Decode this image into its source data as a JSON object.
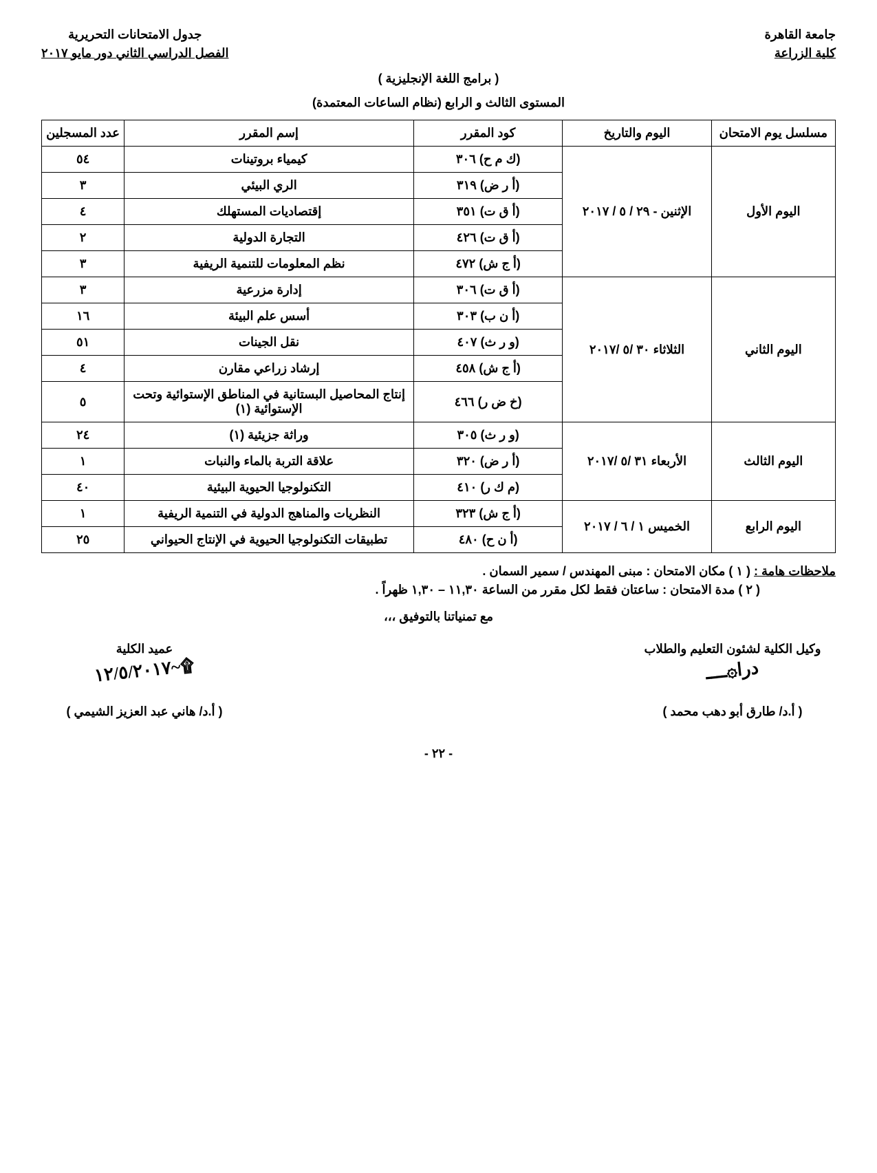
{
  "header": {
    "university": "جامعة القاهرة",
    "faculty": "كلية الزراعة",
    "schedule_title": "جدول الامتحانات التحريرية",
    "semester": "الفصل الدراسي الثاني دور مايو ٢٠١٧"
  },
  "program_line": "( برامج اللغة الإنجليزية )",
  "level_line": "المستوى الثالث و الرابع (نظام الساعات المعتمدة)",
  "columns": {
    "serial": "مسلسل يوم الامتحان",
    "date": "اليوم والتاريخ",
    "code": "كود المقرر",
    "name": "إسم المقرر",
    "count": "عدد المسجلين"
  },
  "days": [
    {
      "serial": "اليوم الأول",
      "date": "الإثنين - ٢٩ / ٥ / ٢٠١٧",
      "courses": [
        {
          "code": "(ك م ح) ٣٠٦",
          "name": "كيمياء بروتينات",
          "count": "٥٤"
        },
        {
          "code": "(أ ر ض) ٣١٩",
          "name": "الري البيئي",
          "count": "٣"
        },
        {
          "code": "(أ ق ت) ٣٥١",
          "name": "إقتصاديات المستهلك",
          "count": "٤"
        },
        {
          "code": "(أ ق ت) ٤٢٦",
          "name": "التجارة الدولية",
          "count": "٢"
        },
        {
          "code": "(أ ج ش) ٤٧٢",
          "name": "نظم المعلومات للتنمية الريفية",
          "count": "٣"
        }
      ]
    },
    {
      "serial": "اليوم الثاني",
      "date": "الثلاثاء ٣٠ /٥ /٢٠١٧",
      "courses": [
        {
          "code": "(أ ق ت) ٣٠٦",
          "name": "إدارة مزرعية",
          "count": "٣"
        },
        {
          "code": "(أ ن ب) ٣٠٣",
          "name": "أسس علم البيئة",
          "count": "١٦"
        },
        {
          "code": "(و ر ث) ٤٠٧",
          "name": "نقل الجينات",
          "count": "٥١"
        },
        {
          "code": "(أ ج ش) ٤٥٨",
          "name": "إرشاد زراعي مقارن",
          "count": "٤"
        },
        {
          "code": "(خ ض ر) ٤٦٦",
          "name": "إنتاج المحاصيل البستانية في المناطق الإستوائية وتحت الإستوائية (١)",
          "count": "٥"
        }
      ]
    },
    {
      "serial": "اليوم الثالث",
      "date": "الأربعاء ٣١ /٥ /٢٠١٧",
      "courses": [
        {
          "code": "(و ر ث) ٣٠٥",
          "name": "وراثة جزيئية (١)",
          "count": "٢٤"
        },
        {
          "code": "(أ ر ض) ٣٢٠",
          "name": "علاقة التربة بالماء والنبات",
          "count": "١"
        },
        {
          "code": "(م ك ر) ٤١٠",
          "name": "التكنولوجيا الحيوية البيئية",
          "count": "٤٠"
        }
      ]
    },
    {
      "serial": "اليوم الرابع",
      "date": "الخميس ١ / ٦ / ٢٠١٧",
      "courses": [
        {
          "code": "(أ ج ش) ٣٢٣",
          "name": "النظريات والمناهج الدولية في التنمية الريفية",
          "count": "١"
        },
        {
          "code": "(أ ن ح) ٤٨٠",
          "name": "تطبيقات التكنولوجيا الحيوية في الإنتاج الحيواني",
          "count": "٢٥"
        }
      ]
    }
  ],
  "notes": {
    "label": "ملاحظات هامة :",
    "line1": "( ١ ) مكان الامتحان : مبنى المهندس / سمير السمان .",
    "line2": "( ٢ ) مدة الامتحان : ساعتان فقط لكل مقرر من الساعة ١١,٣٠ – ١,٣٠ ظهراً ."
  },
  "wish": "مع تمنياتنا بالتوفيق ،،،",
  "signatures": {
    "right_title": "وكيل الكلية لشئون التعليم والطلاب",
    "right_name": "( أ.د/ طارق أبو دهب محمد )",
    "left_title": "عميد الكلية",
    "left_name": "( أ.د/ هاني عبد العزيز الشيمي )"
  },
  "page_number": "- ٢٢ -"
}
